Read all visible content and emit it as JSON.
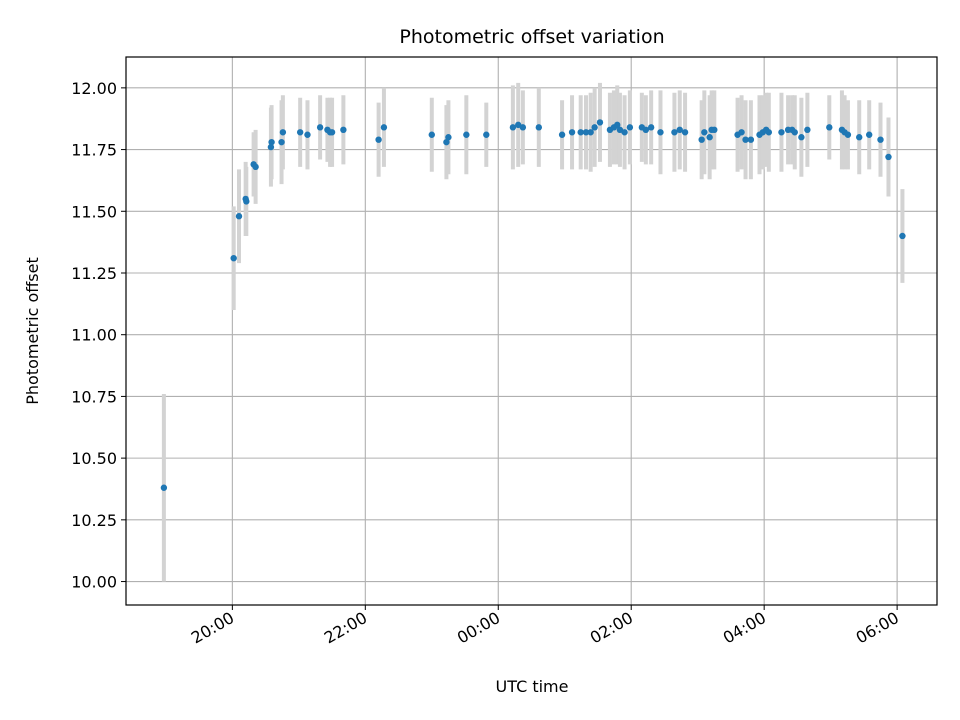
{
  "chart_data": {
    "type": "scatter",
    "title": "Photometric offset variation",
    "xlabel": "UTC time",
    "ylabel": "Photometric offset",
    "x_unit": "hours since 00:00 UTC",
    "xlim": [
      -5.6,
      6.6
    ],
    "ylim": [
      9.905,
      12.125
    ],
    "x_ticks": [
      {
        "value": -4,
        "label": "20:00"
      },
      {
        "value": -2,
        "label": "22:00"
      },
      {
        "value": 0,
        "label": "00:00"
      },
      {
        "value": 2,
        "label": "02:00"
      },
      {
        "value": 4,
        "label": "04:00"
      },
      {
        "value": 6,
        "label": "06:00"
      }
    ],
    "y_ticks": [
      {
        "value": 10.0,
        "label": "10.00"
      },
      {
        "value": 10.25,
        "label": "10.25"
      },
      {
        "value": 10.5,
        "label": "10.50"
      },
      {
        "value": 10.75,
        "label": "10.75"
      },
      {
        "value": 11.0,
        "label": "11.00"
      },
      {
        "value": 11.25,
        "label": "11.25"
      },
      {
        "value": 11.5,
        "label": "11.50"
      },
      {
        "value": 11.75,
        "label": "11.75"
      },
      {
        "value": 12.0,
        "label": "12.00"
      }
    ],
    "grid": true,
    "marker_color": "#1f77b4",
    "errorbar_color": "#d3d3d3",
    "points": [
      [
        -5.03,
        10.38,
        0.38
      ],
      [
        -3.98,
        11.31,
        0.21
      ],
      [
        -3.9,
        11.48,
        0.19
      ],
      [
        -3.8,
        11.55,
        0.15
      ],
      [
        -3.79,
        11.54,
        0.14
      ],
      [
        -3.68,
        11.69,
        0.13
      ],
      [
        -3.65,
        11.68,
        0.15
      ],
      [
        -3.42,
        11.76,
        0.16
      ],
      [
        -3.41,
        11.78,
        0.15
      ],
      [
        -3.26,
        11.78,
        0.17
      ],
      [
        -3.24,
        11.82,
        0.15
      ],
      [
        -2.98,
        11.82,
        0.14
      ],
      [
        -2.87,
        11.81,
        0.14
      ],
      [
        -2.68,
        11.84,
        0.13
      ],
      [
        -2.57,
        11.83,
        0.13
      ],
      [
        -2.53,
        11.82,
        0.14
      ],
      [
        -2.5,
        11.82,
        0.14
      ],
      [
        -2.33,
        11.83,
        0.14
      ],
      [
        -1.8,
        11.79,
        0.15
      ],
      [
        -1.72,
        11.84,
        0.16
      ],
      [
        -1.0,
        11.81,
        0.15
      ],
      [
        -0.78,
        11.78,
        0.15
      ],
      [
        -0.75,
        11.8,
        0.15
      ],
      [
        -0.48,
        11.81,
        0.16
      ],
      [
        -0.18,
        11.81,
        0.13
      ],
      [
        0.22,
        11.84,
        0.17
      ],
      [
        0.3,
        11.85,
        0.17
      ],
      [
        0.37,
        11.84,
        0.15
      ],
      [
        0.61,
        11.84,
        0.16
      ],
      [
        0.96,
        11.81,
        0.14
      ],
      [
        1.11,
        11.82,
        0.15
      ],
      [
        1.24,
        11.82,
        0.15
      ],
      [
        1.32,
        11.82,
        0.15
      ],
      [
        1.39,
        11.82,
        0.16
      ],
      [
        1.45,
        11.84,
        0.16
      ],
      [
        1.53,
        11.86,
        0.16
      ],
      [
        1.68,
        11.83,
        0.15
      ],
      [
        1.74,
        11.84,
        0.15
      ],
      [
        1.79,
        11.85,
        0.16
      ],
      [
        1.83,
        11.83,
        0.15
      ],
      [
        1.9,
        11.82,
        0.15
      ],
      [
        1.98,
        11.84,
        0.15
      ],
      [
        2.16,
        11.84,
        0.14
      ],
      [
        2.22,
        11.83,
        0.14
      ],
      [
        2.3,
        11.84,
        0.15
      ],
      [
        2.44,
        11.82,
        0.17
      ],
      [
        2.65,
        11.82,
        0.16
      ],
      [
        2.73,
        11.83,
        0.16
      ],
      [
        2.81,
        11.82,
        0.16
      ],
      [
        3.06,
        11.79,
        0.16
      ],
      [
        3.1,
        11.82,
        0.17
      ],
      [
        3.18,
        11.8,
        0.17
      ],
      [
        3.21,
        11.83,
        0.16
      ],
      [
        3.25,
        11.83,
        0.16
      ],
      [
        3.6,
        11.81,
        0.15
      ],
      [
        3.66,
        11.82,
        0.15
      ],
      [
        3.72,
        11.79,
        0.16
      ],
      [
        3.8,
        11.79,
        0.16
      ],
      [
        3.93,
        11.81,
        0.16
      ],
      [
        3.98,
        11.82,
        0.15
      ],
      [
        4.03,
        11.83,
        0.15
      ],
      [
        4.07,
        11.82,
        0.16
      ],
      [
        4.26,
        11.82,
        0.16
      ],
      [
        4.36,
        11.83,
        0.14
      ],
      [
        4.42,
        11.83,
        0.14
      ],
      [
        4.46,
        11.82,
        0.15
      ],
      [
        4.56,
        11.8,
        0.16
      ],
      [
        4.65,
        11.83,
        0.15
      ],
      [
        4.98,
        11.84,
        0.13
      ],
      [
        5.17,
        11.83,
        0.16
      ],
      [
        5.21,
        11.82,
        0.15
      ],
      [
        5.26,
        11.81,
        0.14
      ],
      [
        5.43,
        11.8,
        0.15
      ],
      [
        5.58,
        11.81,
        0.14
      ],
      [
        5.75,
        11.79,
        0.15
      ],
      [
        5.87,
        11.72,
        0.16
      ],
      [
        6.08,
        11.4,
        0.19
      ]
    ]
  }
}
